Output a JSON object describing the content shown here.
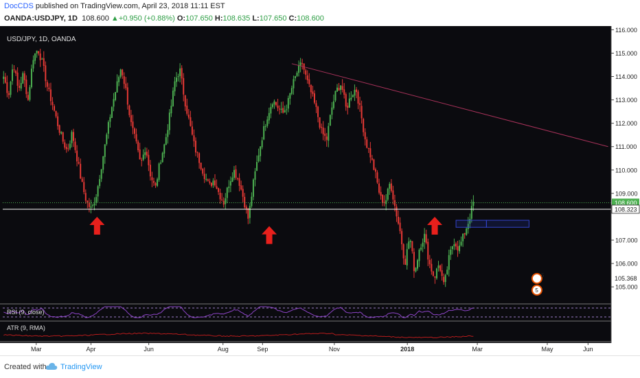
{
  "header": {
    "author": "DocCDS",
    "published_text": " published on TradingView.com, April 23, 2018 11:11 EST",
    "symbol": "OANDA:USDJPY, 1D",
    "last": "108.600",
    "change": "+0.950 (+0.88%)",
    "open_label": "O:",
    "open": "107.650",
    "high_label": "H:",
    "high": "108.635",
    "low_label": "L:",
    "low": "107.650",
    "close_label": "C:",
    "close": "108.600"
  },
  "footer": {
    "created_with": "Created with",
    "brand": "TradingView"
  },
  "colors": {
    "up": "#4caf50",
    "down": "#e53935",
    "background": "#0b0b0f",
    "arrow": "#e8201c",
    "trend": "#a8325a",
    "support": "#ffffff",
    "price_dotted": "#4caf50",
    "rsi": "#8e44c9",
    "atr": "#b71c1c"
  },
  "chart_data": {
    "type": "candlestick",
    "legend": "USD/JPY, 1D, OANDA",
    "x_ticks": [
      "Mar",
      "Apr",
      "Jun",
      "Aug",
      "Sep",
      "Nov",
      "2018",
      "Mar",
      "May",
      "Jun"
    ],
    "y_ticks": [
      "116.000",
      "115.000",
      "114.000",
      "113.000",
      "112.000",
      "111.000",
      "110.000",
      "109.000",
      "107.000",
      "106.000",
      "105.000"
    ],
    "ylim": [
      104.3,
      116.1
    ],
    "price_labels": [
      {
        "label": "108.600",
        "value": 108.6
      },
      {
        "label": "108.323",
        "value": 108.323
      },
      {
        "label": "105.368",
        "value": 105.368
      }
    ],
    "close_path": [
      114.0,
      113.2,
      114.6,
      113.4,
      114.1,
      113.0,
      114.8,
      115.2,
      114.5,
      113.5,
      112.8,
      112.0,
      111.3,
      110.8,
      111.6,
      110.5,
      109.4,
      108.6,
      108.3,
      109.0,
      110.2,
      111.4,
      112.6,
      113.5,
      114.4,
      113.4,
      112.0,
      111.2,
      110.2,
      111.0,
      109.8,
      109.2,
      110.4,
      111.2,
      112.4,
      113.8,
      114.3,
      113.0,
      112.0,
      111.0,
      110.4,
      109.8,
      109.3,
      109.6,
      109.0,
      108.6,
      109.4,
      110.0,
      109.6,
      108.8,
      107.9,
      109.4,
      110.6,
      111.6,
      112.4,
      113.0,
      112.7,
      112.4,
      112.8,
      113.6,
      114.2,
      114.6,
      113.8,
      113.2,
      112.5,
      111.6,
      111.3,
      112.6,
      113.4,
      113.7,
      112.6,
      113.2,
      113.5,
      112.4,
      111.2,
      110.6,
      109.8,
      108.8,
      108.6,
      109.5,
      108.4,
      107.4,
      106.0,
      107.2,
      105.6,
      106.7,
      107.2,
      106.0,
      105.4,
      106.0,
      105.0,
      106.2,
      107.0,
      106.6,
      107.2,
      107.8,
      108.6
    ],
    "trendline": [
      {
        "x": 0.475,
        "y": 114.55
      },
      {
        "x": 0.995,
        "y": 111.0
      }
    ],
    "support": 108.323,
    "current": 108.6,
    "boxes": [
      {
        "x0": 0.745,
        "x1": 0.795,
        "y0": 107.55,
        "y1": 107.85
      },
      {
        "x0": 0.795,
        "x1": 0.865,
        "y0": 107.55,
        "y1": 107.85
      }
    ],
    "arrows": [
      {
        "x": 0.155,
        "y": 108.0
      },
      {
        "x": 0.438,
        "y": 107.6
      },
      {
        "x": 0.71,
        "y": 108.0
      }
    ],
    "rsi_label": "RSI (9, close)",
    "atr_label": "ATR (9, RMA)",
    "badge_count": "5"
  }
}
